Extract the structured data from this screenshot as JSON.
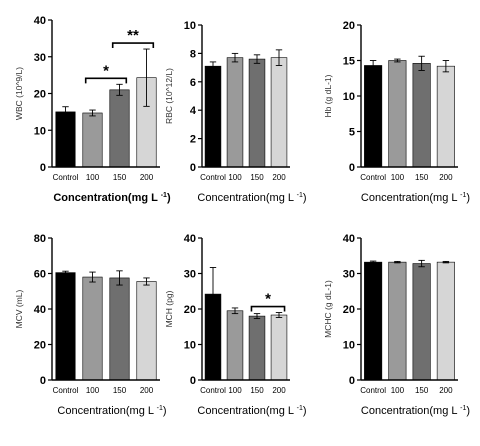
{
  "chart_data": [
    {
      "type": "bar",
      "title": "",
      "xlabel": "Concentration(mg L",
      "xlabel_sup": "-1",
      "xlabel_bold": true,
      "ylabel": "WBC (10^9/L)",
      "ylim": [
        0,
        40
      ],
      "yticks": [
        0,
        10,
        20,
        30,
        40
      ],
      "categories": [
        "Control",
        "100",
        "150",
        "200"
      ],
      "values": [
        15.0,
        14.7,
        21.0,
        24.3
      ],
      "errors": [
        1.4,
        0.8,
        1.5,
        7.8
      ],
      "significance": [
        {
          "from": 1,
          "to": 2,
          "label": "*"
        },
        {
          "from": 2,
          "to": 3,
          "label": "**"
        }
      ]
    },
    {
      "type": "bar",
      "title": "",
      "xlabel": "Concentration(mg L",
      "xlabel_sup": "-1",
      "xlabel_bold": false,
      "ylabel": "RBC (10^12/L)",
      "ylim": [
        0,
        10
      ],
      "yticks": [
        0,
        2,
        4,
        6,
        8,
        10
      ],
      "categories": [
        "Control",
        "100",
        "150",
        "200"
      ],
      "values": [
        7.1,
        7.7,
        7.6,
        7.7
      ],
      "errors": [
        0.3,
        0.3,
        0.3,
        0.55
      ],
      "significance": []
    },
    {
      "type": "bar",
      "title": "",
      "xlabel": "Concentration(mg L",
      "xlabel_sup": "-1",
      "xlabel_bold": false,
      "ylabel": "Hb (g dL-1)",
      "ylim": [
        0,
        20
      ],
      "yticks": [
        0,
        5,
        10,
        15,
        20
      ],
      "categories": [
        "Control",
        "100",
        "150",
        "200"
      ],
      "values": [
        14.3,
        15.0,
        14.6,
        14.2
      ],
      "errors": [
        0.7,
        0.2,
        1.0,
        0.8
      ],
      "significance": []
    },
    {
      "type": "bar",
      "title": "",
      "xlabel": "Concentration(mg L",
      "xlabel_sup": "-1",
      "xlabel_bold": false,
      "ylabel": "MCV (mL)",
      "ylim": [
        0,
        80
      ],
      "yticks": [
        0,
        20,
        40,
        60,
        80
      ],
      "categories": [
        "Control",
        "100",
        "150",
        "200"
      ],
      "values": [
        60.5,
        58.0,
        57.5,
        55.5
      ],
      "errors": [
        0.8,
        2.8,
        4.0,
        2.0
      ],
      "significance": []
    },
    {
      "type": "bar",
      "title": "",
      "xlabel": "Concentration(mg L",
      "xlabel_sup": "-1",
      "xlabel_bold": false,
      "ylabel": "MCH (pg)",
      "ylim": [
        0,
        40
      ],
      "yticks": [
        0,
        10,
        20,
        30,
        40
      ],
      "categories": [
        "Control",
        "100",
        "150",
        "200"
      ],
      "values": [
        24.2,
        19.5,
        18.0,
        18.3
      ],
      "errors": [
        7.5,
        0.8,
        0.7,
        0.7
      ],
      "significance": [
        {
          "from": 2,
          "to": 3,
          "label": "*"
        }
      ]
    },
    {
      "type": "bar",
      "title": "",
      "xlabel": "Concentration(mg L",
      "xlabel_sup": "-1",
      "xlabel_bold": false,
      "ylabel": "MCHC (g dL-1)",
      "ylim": [
        0,
        40
      ],
      "yticks": [
        0,
        10,
        20,
        30,
        40
      ],
      "categories": [
        "Control",
        "100",
        "150",
        "200"
      ],
      "values": [
        33.2,
        33.2,
        32.8,
        33.2
      ],
      "errors": [
        0.3,
        0.2,
        0.9,
        0.2
      ],
      "significance": []
    }
  ],
  "style": {
    "bar_colors": [
      "#000000",
      "#9a9a9a",
      "#6f6f6f",
      "#d6d6d6"
    ],
    "axis_color": "#000000"
  }
}
